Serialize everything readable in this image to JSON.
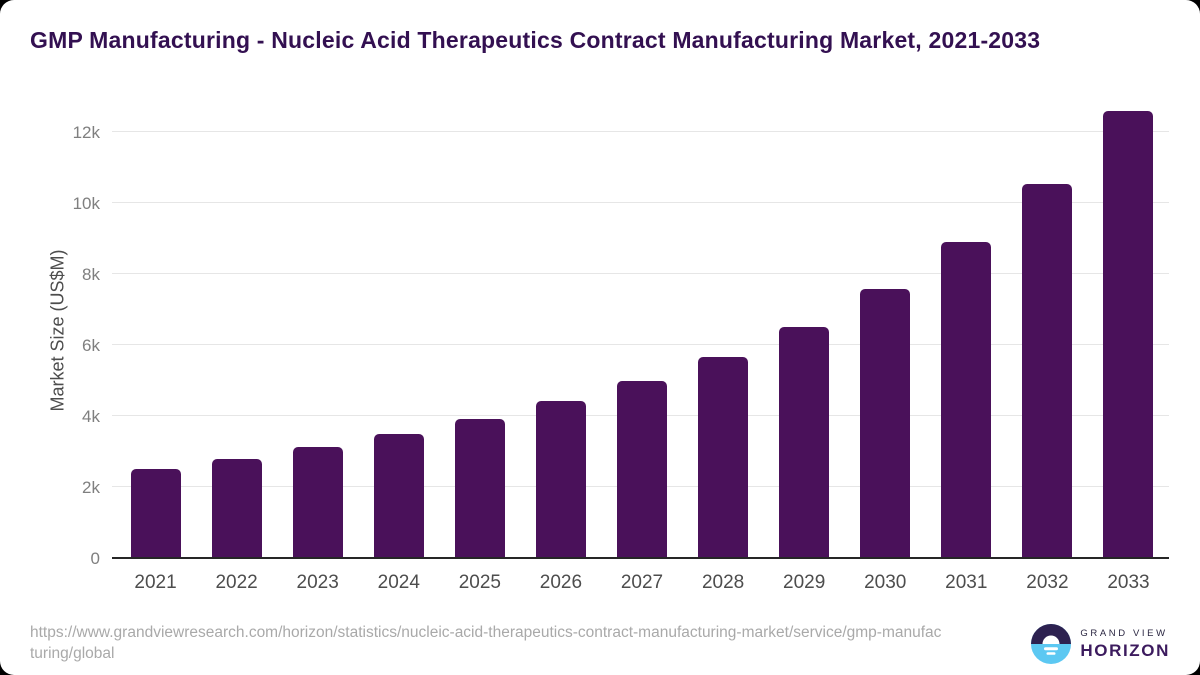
{
  "header": {
    "title": "GMP Manufacturing - Nucleic Acid Therapeutics Contract Manufacturing Market, 2021-2033",
    "title_color": "#331051"
  },
  "chart_data": {
    "type": "bar",
    "title": "GMP Manufacturing - Nucleic Acid Therapeutics Contract Manufacturing Market, 2021-2033",
    "categories": [
      "2021",
      "2022",
      "2023",
      "2024",
      "2025",
      "2026",
      "2027",
      "2028",
      "2029",
      "2030",
      "2031",
      "2032",
      "2033"
    ],
    "values": [
      2500,
      2780,
      3120,
      3500,
      3930,
      4430,
      4980,
      5670,
      6510,
      7570,
      8890,
      10530,
      12590
    ],
    "xlabel": "",
    "ylabel": "Market Size (US$M)",
    "ylim": [
      0,
      13000
    ],
    "yticks": [
      {
        "value": 0,
        "label": "0"
      },
      {
        "value": 2000,
        "label": "2k"
      },
      {
        "value": 4000,
        "label": "4k"
      },
      {
        "value": 6000,
        "label": "6k"
      },
      {
        "value": 8000,
        "label": "8k"
      },
      {
        "value": 10000,
        "label": "10k"
      },
      {
        "value": 12000,
        "label": "12k"
      }
    ],
    "grid": true,
    "legend": "none",
    "bar_color": "#4a115a",
    "gridline_color": "#e6e6e6",
    "axis_line_color": "#262626",
    "ytick_color": "#7f7f7f",
    "xtick_color": "#4d4d4d"
  },
  "footer": {
    "source_url": "https://www.grandviewresearch.com/horizon/statistics/nucleic-acid-therapeutics-contract-manufacturing-market/service/gmp-manufacturing/global",
    "logo": {
      "brand_line1": "GRAND VIEW",
      "brand_line2": "HORIZON",
      "icon": "horizon-sun-icon",
      "icon_dark_color": "#2d2150",
      "icon_blue_color": "#5cc8f2"
    }
  }
}
